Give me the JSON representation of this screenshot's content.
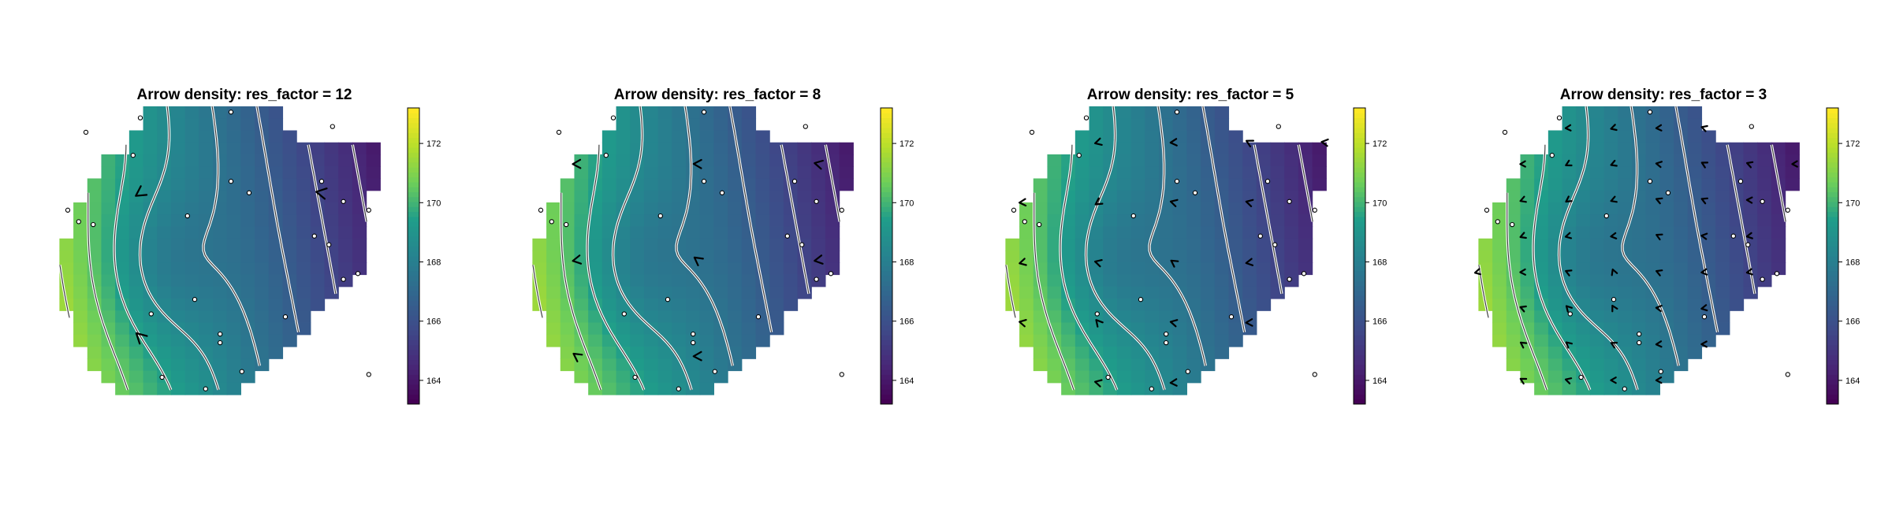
{
  "chart_data": [
    {
      "type": "heatmap",
      "title": "Arrow density: res_factor = 12",
      "res_factor": 12,
      "colorbar": {
        "palette": "viridis",
        "range": [
          163.2,
          173.2
        ],
        "ticks": [
          164,
          166,
          168,
          170,
          172
        ],
        "low_color": "#440154",
        "high_color": "#fde725"
      },
      "contours": true,
      "arrows": true,
      "points": true
    },
    {
      "type": "heatmap",
      "title": "Arrow density: res_factor = 8",
      "res_factor": 8,
      "colorbar": {
        "palette": "viridis",
        "range": [
          163.2,
          173.2
        ],
        "ticks": [
          164,
          166,
          168,
          170,
          172
        ],
        "low_color": "#440154",
        "high_color": "#fde725"
      },
      "contours": true,
      "arrows": true,
      "points": true
    },
    {
      "type": "heatmap",
      "title": "Arrow density: res_factor = 5",
      "res_factor": 5,
      "colorbar": {
        "palette": "viridis",
        "range": [
          163.2,
          173.2
        ],
        "ticks": [
          164,
          166,
          168,
          170,
          172
        ],
        "low_color": "#440154",
        "high_color": "#fde725"
      },
      "contours": true,
      "arrows": true,
      "points": true
    },
    {
      "type": "heatmap",
      "title": "Arrow density: res_factor = 3",
      "res_factor": 3,
      "colorbar": {
        "palette": "viridis",
        "range": [
          163.2,
          173.2
        ],
        "ticks": [
          164,
          166,
          168,
          170,
          172
        ],
        "low_color": "#440154",
        "high_color": "#fde725"
      },
      "contours": true,
      "arrows": true,
      "points": true
    }
  ],
  "colors": {
    "background": "#ffffff",
    "arrow": "#000000",
    "contour_outer": "#ffffff",
    "contour_inner": "#333333",
    "point_fill": "#ffffff",
    "point_stroke": "#000000"
  }
}
